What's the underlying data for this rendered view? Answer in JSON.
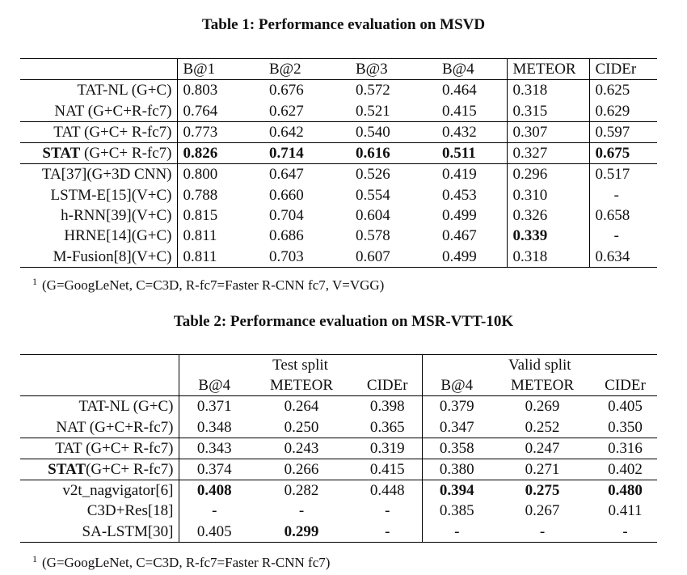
{
  "table1": {
    "caption": "Table 1: Performance evaluation on MSVD",
    "headers": [
      "B@1",
      "B@2",
      "B@3",
      "B@4",
      "METEOR",
      "CIDEr"
    ],
    "rows": [
      {
        "label": "TAT-NL (G+C)",
        "values": [
          "0.803",
          "0.676",
          "0.572",
          "0.464",
          "0.318",
          "0.625"
        ]
      },
      {
        "label": "NAT (G+C+R-fc7)",
        "values": [
          "0.764",
          "0.627",
          "0.521",
          "0.415",
          "0.315",
          "0.629"
        ]
      },
      {
        "label": "TAT (G+C+ R-fc7)",
        "values": [
          "0.773",
          "0.642",
          "0.540",
          "0.432",
          "0.307",
          "0.597"
        ]
      },
      {
        "label_bold": "STAT",
        "label_rest": " (G+C+ R-fc7)",
        "values": [
          "0.826",
          "0.714",
          "0.616",
          "0.511",
          "0.327",
          "0.675"
        ]
      },
      {
        "label": "TA[37](G+3D CNN)",
        "values": [
          "0.800",
          "0.647",
          "0.526",
          "0.419",
          "0.296",
          "0.517"
        ]
      },
      {
        "label": "LSTM-E[15](V+C)",
        "values": [
          "0.788",
          "0.660",
          "0.554",
          "0.453",
          "0.310",
          "-"
        ]
      },
      {
        "label": "h-RNN[39](V+C)",
        "values": [
          "0.815",
          "0.704",
          "0.604",
          "0.499",
          "0.326",
          "0.658"
        ]
      },
      {
        "label": "HRNE[14](G+C)",
        "values": [
          "0.811",
          "0.686",
          "0.578",
          "0.467",
          "0.339",
          "-"
        ]
      },
      {
        "label": "M-Fusion[8](V+C)",
        "values": [
          "0.811",
          "0.703",
          "0.607",
          "0.499",
          "0.318",
          "0.634"
        ]
      }
    ],
    "footnote_mark": "1",
    "footnote": "(G=GoogLeNet, C=C3D, R-fc7=Faster R-CNN fc7, V=VGG)"
  },
  "table2": {
    "caption": "Table 2: Performance evaluation on MSR-VTT-10K",
    "group_headers": [
      "Test split",
      "Valid split"
    ],
    "headers": [
      "B@4",
      "METEOR",
      "CIDEr",
      "B@4",
      "METEOR",
      "CIDEr"
    ],
    "rows": [
      {
        "label": "TAT-NL (G+C)",
        "values": [
          "0.371",
          "0.264",
          "0.398",
          "0.379",
          "0.269",
          "0.405"
        ]
      },
      {
        "label": "NAT (G+C+R-fc7)",
        "values": [
          "0.348",
          "0.250",
          "0.365",
          "0.347",
          "0.252",
          "0.350"
        ]
      },
      {
        "label": "TAT (G+C+ R-fc7)",
        "values": [
          "0.343",
          "0.243",
          "0.319",
          "0.358",
          "0.247",
          "0.316"
        ]
      },
      {
        "label_bold": "STAT",
        "label_rest": "(G+C+ R-fc7)",
        "values": [
          "0.374",
          "0.266",
          "0.415",
          "0.380",
          "0.271",
          "0.402"
        ]
      },
      {
        "label": "v2t_nagvigator[6]",
        "values": [
          "0.408",
          "0.282",
          "0.448",
          "0.394",
          "0.275",
          "0.480"
        ]
      },
      {
        "label": "C3D+Res[18]",
        "values": [
          "-",
          "-",
          "-",
          "0.385",
          "0.267",
          "0.411"
        ]
      },
      {
        "label": "SA-LSTM[30]",
        "values": [
          "0.405",
          "0.299",
          "-",
          "-",
          "-",
          "-"
        ]
      }
    ],
    "footnote_mark": "1",
    "footnote": "(G=GoogLeNet, C=C3D, R-fc7=Faster R-CNN fc7)"
  }
}
